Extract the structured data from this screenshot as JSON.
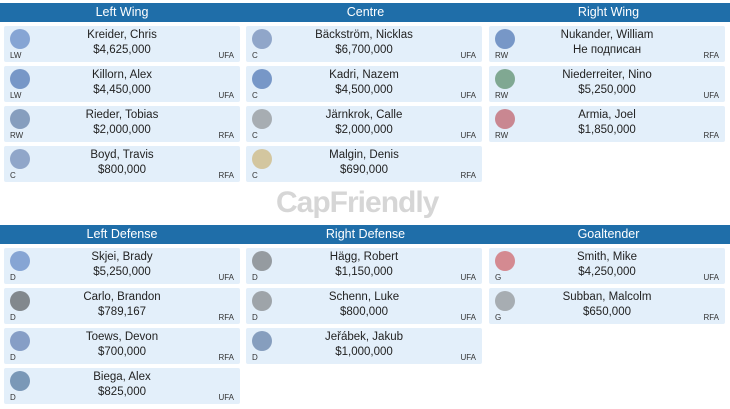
{
  "top": {
    "headers": [
      "Left Wing",
      "Centre",
      "Right Wing"
    ],
    "columns": [
      [
        {
          "name": "Kreider, Chris",
          "cap": "$4,625,000",
          "pos": "LW",
          "status": "UFA",
          "team_icon": "rangers-icon",
          "logo_color": "#3b67b5"
        },
        {
          "name": "Killorn, Alex",
          "cap": "$4,450,000",
          "pos": "LW",
          "status": "UFA",
          "team_icon": "lightning-icon",
          "logo_color": "#1f4f9c"
        },
        {
          "name": "Rieder, Tobias",
          "cap": "$2,000,000",
          "pos": "RW",
          "status": "RFA",
          "team_icon": "oilers-icon",
          "logo_color": "#3a5b8c"
        },
        {
          "name": "Boyd, Travis",
          "cap": "$800,000",
          "pos": "C",
          "status": "RFA",
          "team_icon": "capitals-icon",
          "logo_color": "#4d6aa0"
        }
      ],
      [
        {
          "name": "Bäckström, Nicklas",
          "cap": "$6,700,000",
          "pos": "C",
          "status": "UFA",
          "team_icon": "capitals-icon",
          "logo_color": "#4d6aa0"
        },
        {
          "name": "Kadri, Nazem",
          "cap": "$4,500,000",
          "pos": "C",
          "status": "UFA",
          "team_icon": "maple-leafs-icon",
          "logo_color": "#1f4f9c"
        },
        {
          "name": "Järnkrok, Calle",
          "cap": "$2,000,000",
          "pos": "C",
          "status": "UFA",
          "team_icon": "predators-icon",
          "logo_color": "#777777"
        },
        {
          "name": "Malgin, Denis",
          "cap": "$690,000",
          "pos": "C",
          "status": "RFA",
          "team_icon": "panthers-icon",
          "logo_color": "#c7a454"
        }
      ],
      [
        {
          "name": "Nukander, William",
          "cap": "Не подписан",
          "pos": "RW",
          "status": "RFA",
          "team_icon": "maple-leafs-icon",
          "logo_color": "#1f4f9c"
        },
        {
          "name": "Niederreiter, Nino",
          "cap": "$5,250,000",
          "pos": "RW",
          "status": "UFA",
          "team_icon": "wild-icon",
          "logo_color": "#2f6d3c"
        },
        {
          "name": "Armia, Joel",
          "cap": "$1,850,000",
          "pos": "RW",
          "status": "RFA",
          "team_icon": "canadiens-icon",
          "logo_color": "#b5323b"
        }
      ]
    ]
  },
  "watermark": "CapFriendly",
  "bottom": {
    "headers": [
      "Left Defense",
      "Right Defense",
      "Goaltender"
    ],
    "columns": [
      [
        {
          "name": "Skjei, Brady",
          "cap": "$5,250,000",
          "pos": "D",
          "status": "UFA",
          "team_icon": "rangers-icon",
          "logo_color": "#3b67b5"
        },
        {
          "name": "Carlo, Brandon",
          "cap": "$789,167",
          "pos": "D",
          "status": "RFA",
          "team_icon": "bruins-icon",
          "logo_color": "#333333"
        },
        {
          "name": "Toews, Devon",
          "cap": "$700,000",
          "pos": "D",
          "status": "RFA",
          "team_icon": "islanders-icon",
          "logo_color": "#3a5b9a"
        },
        {
          "name": "Biega, Alex",
          "cap": "$825,000",
          "pos": "D",
          "status": "UFA",
          "team_icon": "canucks-icon",
          "logo_color": "#25507f"
        }
      ],
      [
        {
          "name": "Hägg, Robert",
          "cap": "$1,150,000",
          "pos": "D",
          "status": "UFA",
          "team_icon": "flyers-icon",
          "logo_color": "#555555"
        },
        {
          "name": "Schenn, Luke",
          "cap": "$800,000",
          "pos": "D",
          "status": "UFA",
          "team_icon": "ducks-icon",
          "logo_color": "#666666"
        },
        {
          "name": "Jeřábek, Jakub",
          "cap": "$1,000,000",
          "pos": "D",
          "status": "UFA",
          "team_icon": "oilers-icon",
          "logo_color": "#3a5b8c"
        }
      ],
      [
        {
          "name": "Smith, Mike",
          "cap": "$4,250,000",
          "pos": "G",
          "status": "UFA",
          "team_icon": "flames-icon",
          "logo_color": "#c8363a"
        },
        {
          "name": "Subban, Malcolm",
          "cap": "$650,000",
          "pos": "G",
          "status": "RFA",
          "team_icon": "golden-knights-icon",
          "logo_color": "#777777"
        }
      ]
    ]
  }
}
